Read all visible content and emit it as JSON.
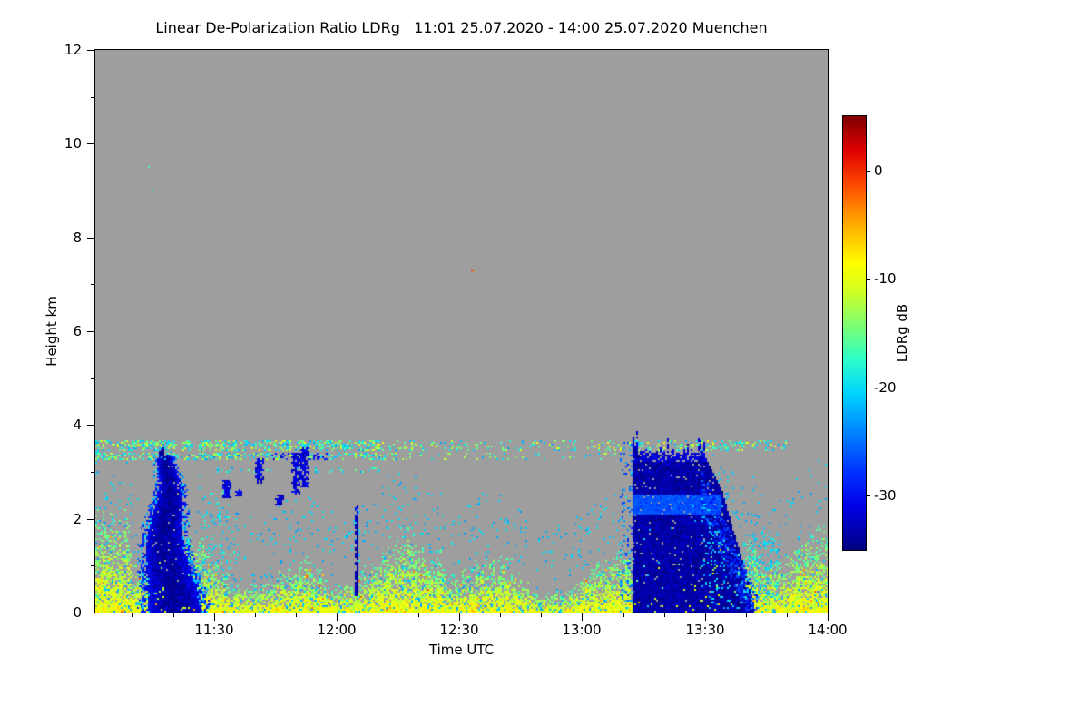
{
  "chart_data": {
    "type": "heatmap",
    "title": "Linear De-Polarization Ratio LDRg   11:01 25.07.2020 - 14:00 25.07.2020 Muenchen",
    "quantity": "Linear De-Polarization Ratio LDRg",
    "period": "11:01 25.07.2020 - 14:00 25.07.2020",
    "station": "Muenchen",
    "xlabel": "Time UTC",
    "ylabel": "Height km",
    "x_start": "11:01",
    "x_end": "14:00",
    "x_ticks": [
      "11:30",
      "12:00",
      "12:30",
      "13:00",
      "13:30",
      "14:00"
    ],
    "y_ticks": [
      0,
      2,
      4,
      6,
      8,
      10,
      12
    ],
    "y_range_km": [
      0,
      12
    ],
    "grid": false,
    "background_no_data_color": "#9e9e9e",
    "colorbar": {
      "label": "LDRg dB",
      "position": "right",
      "range_db": [
        -35,
        5
      ],
      "tick_values": [
        0,
        -10,
        -20,
        -30
      ],
      "colormap_stops": [
        {
          "t": 0.0,
          "color": "#000080"
        },
        {
          "t": 0.1,
          "color": "#0000e8"
        },
        {
          "t": 0.18,
          "color": "#0033ff"
        },
        {
          "t": 0.28,
          "color": "#008cff"
        },
        {
          "t": 0.36,
          "color": "#00d4ff"
        },
        {
          "t": 0.44,
          "color": "#2effc9"
        },
        {
          "t": 0.52,
          "color": "#7fff70"
        },
        {
          "t": 0.6,
          "color": "#d4ff20"
        },
        {
          "t": 0.66,
          "color": "#ffff00"
        },
        {
          "t": 0.75,
          "color": "#ffae00"
        },
        {
          "t": 0.84,
          "color": "#ff4d00"
        },
        {
          "t": 0.92,
          "color": "#e00000"
        },
        {
          "t": 1.0,
          "color": "#7f0000"
        }
      ]
    },
    "features": [
      {
        "id": "surface-aerosol-layer",
        "description": "Dense yellow/green aerosol speckle in the boundary layer, strongest below ~1 km, scattered cyan dots up to ~2.5 km, rare orange/red specks",
        "time": [
          "11:01",
          "14:00"
        ],
        "height_km": [
          0,
          2.6
        ],
        "ldr_db_range": [
          -24,
          -6
        ]
      },
      {
        "id": "elevated-thin-layer",
        "description": "Thin broken layers of cyan/green/yellow dashes near 3.3-3.7 km, densest 11:01-12:10, with dark-blue segments near 3.3 km around 11:45-11:56",
        "time": [
          "11:01",
          "13:50"
        ],
        "height_km": [
          3.0,
          3.7
        ],
        "ldr_db_range": [
          -30,
          -11
        ]
      },
      {
        "id": "mid-level-blue-patches",
        "description": "Small dark-blue cloud fragments between the two plumes",
        "ldr_db": -31.5,
        "patches": [
          {
            "time": "11:33",
            "height_km": [
              2.45,
              2.8
            ]
          },
          {
            "time": "11:36",
            "height_km": [
              2.5,
              2.65
            ]
          },
          {
            "time": "11:41",
            "height_km": [
              2.75,
              3.3
            ]
          },
          {
            "time": "11:46",
            "height_km": [
              2.3,
              2.5
            ]
          },
          {
            "time": "11:50",
            "height_km": [
              2.55,
              3.4
            ]
          },
          {
            "time": "11:52",
            "height_km": [
              2.7,
              3.5
            ]
          }
        ]
      },
      {
        "id": "narrow-dark-streak",
        "description": "Very narrow dark-blue vertical streak",
        "time": [
          "12:04",
          "12:06"
        ],
        "height_km": [
          0.35,
          2.05
        ],
        "ldr_db": -33
      },
      {
        "id": "precip-plume-1",
        "description": "Dark-blue precipitation/virga plume, wide at the surface, narrowing toward its top",
        "time": [
          "11:12",
          "11:27"
        ],
        "height_km": [
          0,
          3.55
        ],
        "ldr_db_range": [
          -35,
          -22
        ]
      },
      {
        "id": "precip-plume-2",
        "description": "Tall dark-blue precipitation plume with ragged spiky top, lighter-blue horizontal band, diagonal fall streaks trailing to the surface until ~13:47",
        "time": [
          "13:12",
          "13:42"
        ],
        "height_km": [
          0,
          3.9
        ],
        "ldr_db_range": [
          -35,
          -24
        ],
        "bright_band_height_km": [
          2.1,
          2.5
        ],
        "bright_band_ldr_db": -26.5
      },
      {
        "id": "isolated-red-speck",
        "description": "Single tiny red/dark-red pixel pair",
        "time": "12:33",
        "height_km": 7.3,
        "ldr_db": 0
      },
      {
        "id": "high-altitude-specks",
        "description": "Two faint green specks",
        "ldr_db": -18,
        "points": [
          {
            "time": "11:14",
            "height_km": 9.5
          },
          {
            "time": "11:15",
            "height_km": 9.0
          }
        ]
      }
    ]
  }
}
